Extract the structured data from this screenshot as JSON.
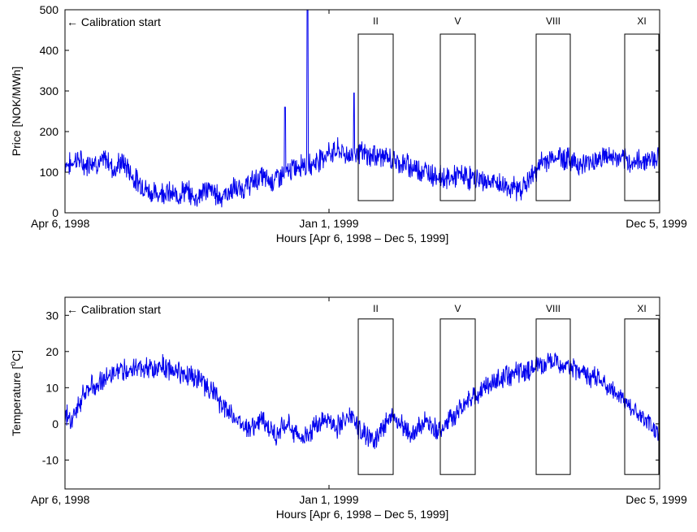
{
  "chart_data": [
    {
      "type": "line",
      "title": "",
      "xlabel": "Hours [Apr 6, 1998 – Dec 5, 1999]",
      "ylabel": "Price [NOK/MWh]",
      "ylim": [
        0,
        500
      ],
      "yticks": [
        "0",
        "100",
        "200",
        "300",
        "400",
        "500"
      ],
      "xtick_labels": [
        "Apr 6, 1998",
        "Jan 1, 1999",
        "Dec 5, 1999"
      ],
      "annotation": "← Calibration start",
      "windows": [
        {
          "label": "II",
          "ymin": 30,
          "ymax": 440
        },
        {
          "label": "V",
          "ymin": 30,
          "ymax": 440
        },
        {
          "label": "VIII",
          "ymin": 30,
          "ymax": 440
        },
        {
          "label": "XI",
          "ymin": 30,
          "ymax": 440
        }
      ],
      "series": [
        {
          "color": "#0000ee",
          "values": [
            125,
            120,
            118,
            130,
            135,
            128,
            120,
            115,
            125,
            130,
            128,
            122,
            118,
            130,
            132,
            125,
            110,
            105,
            120,
            125,
            118,
            112,
            100,
            85,
            80,
            75,
            70,
            60,
            55,
            50,
            48,
            45,
            50,
            55,
            52,
            48,
            45,
            40,
            42,
            50,
            55,
            52,
            45,
            40,
            38,
            42,
            50,
            55,
            58,
            55,
            50,
            45,
            40,
            42,
            45,
            50,
            55,
            60,
            58,
            55,
            60,
            65,
            70,
            75,
            80,
            85,
            90,
            85,
            80,
            78,
            80,
            85,
            90,
            92,
            95,
            100,
            105,
            110,
            115,
            120,
            125,
            118,
            115,
            120,
            125,
            130,
            135,
            140,
            145,
            150,
            148,
            152,
            155,
            150,
            145,
            142,
            140,
            145,
            148,
            150,
            145,
            142,
            140,
            138,
            135,
            140,
            142,
            138,
            135,
            132,
            130,
            128,
            125,
            122,
            120,
            118,
            115,
            112,
            110,
            108,
            105,
            102,
            100,
            98,
            95,
            92,
            90,
            88,
            85,
            84,
            86,
            88,
            90,
            92,
            90,
            88,
            86,
            85,
            84,
            82,
            80,
            78,
            76,
            75,
            74,
            72,
            70,
            68,
            66,
            64,
            62,
            60,
            58,
            60,
            65,
            70,
            80,
            90,
            100,
            110,
            120,
            125,
            130,
            132,
            135,
            138,
            140,
            138,
            135,
            132,
            130,
            128,
            125,
            120,
            118,
            120,
            125,
            128,
            130,
            132,
            135,
            138,
            140,
            138,
            136,
            134,
            132,
            130,
            128,
            126,
            125,
            124,
            125,
            126,
            128,
            130,
            132,
            134,
            136,
            138,
            140
          ]
        }
      ],
      "spikes": [
        {
          "at": 0.37,
          "value": 260
        },
        {
          "at": 0.408,
          "value": 500
        },
        {
          "at": 0.486,
          "value": 295
        },
        {
          "at": 0.52,
          "value": 165
        }
      ]
    },
    {
      "type": "line",
      "title": "",
      "xlabel": "Hours [Apr 6, 1998 – Dec 5, 1999]",
      "ylabel": "Temperature [°C]",
      "ylabel_main": "Temperature [",
      "ylabel_sup": "o",
      "ylabel_end": "C]",
      "ylim": [
        -18,
        35
      ],
      "yticks": [
        "-10",
        "0",
        "10",
        "20",
        "30"
      ],
      "xtick_labels": [
        "Apr 6, 1998",
        "Jan 1, 1999",
        "Dec 5, 1999"
      ],
      "annotation": "← Calibration start",
      "windows": [
        {
          "label": "II",
          "ymin": -14,
          "ymax": 29
        },
        {
          "label": "V",
          "ymin": -14,
          "ymax": 29
        },
        {
          "label": "VIII",
          "ymin": -14,
          "ymax": 29
        },
        {
          "label": "XI",
          "ymin": -14,
          "ymax": 29
        }
      ],
      "series": [
        {
          "color": "#0000ee",
          "values": [
            3,
            2,
            1,
            4,
            6,
            8,
            9,
            10,
            11,
            12,
            12,
            13,
            13,
            14,
            14,
            15,
            15,
            15,
            15,
            16,
            16,
            15,
            15,
            15,
            15,
            16,
            16,
            15,
            15,
            15,
            15,
            14,
            14,
            14,
            13,
            12,
            12,
            11,
            10,
            9,
            8,
            6,
            5,
            4,
            3,
            2,
            1,
            0,
            0,
            -1,
            -1,
            0,
            1,
            0,
            -1,
            -2,
            -3,
            -2,
            -1,
            0,
            -1,
            -2,
            -3,
            -4,
            -3,
            -2,
            -1,
            0,
            1,
            2,
            1,
            0,
            -1,
            0,
            1,
            2,
            1,
            0,
            -1,
            -2,
            -3,
            -4,
            -5,
            -3,
            -1,
            0,
            1,
            2,
            1,
            0,
            -1,
            -2,
            -3,
            -2,
            -1,
            0,
            1,
            0,
            -1,
            -2,
            -1,
            0,
            1,
            2,
            3,
            4,
            5,
            6,
            7,
            8,
            9,
            10,
            10,
            11,
            11,
            12,
            12,
            13,
            13,
            14,
            14,
            14,
            15,
            15,
            15,
            16,
            16,
            16,
            16,
            17,
            17,
            17,
            16,
            16,
            16,
            15,
            15,
            15,
            14,
            14,
            13,
            13,
            12,
            11,
            10,
            10,
            9,
            8,
            7,
            6,
            5,
            4,
            3,
            2,
            1,
            0,
            -1,
            -2,
            -3
          ]
        }
      ],
      "spikes": []
    }
  ]
}
